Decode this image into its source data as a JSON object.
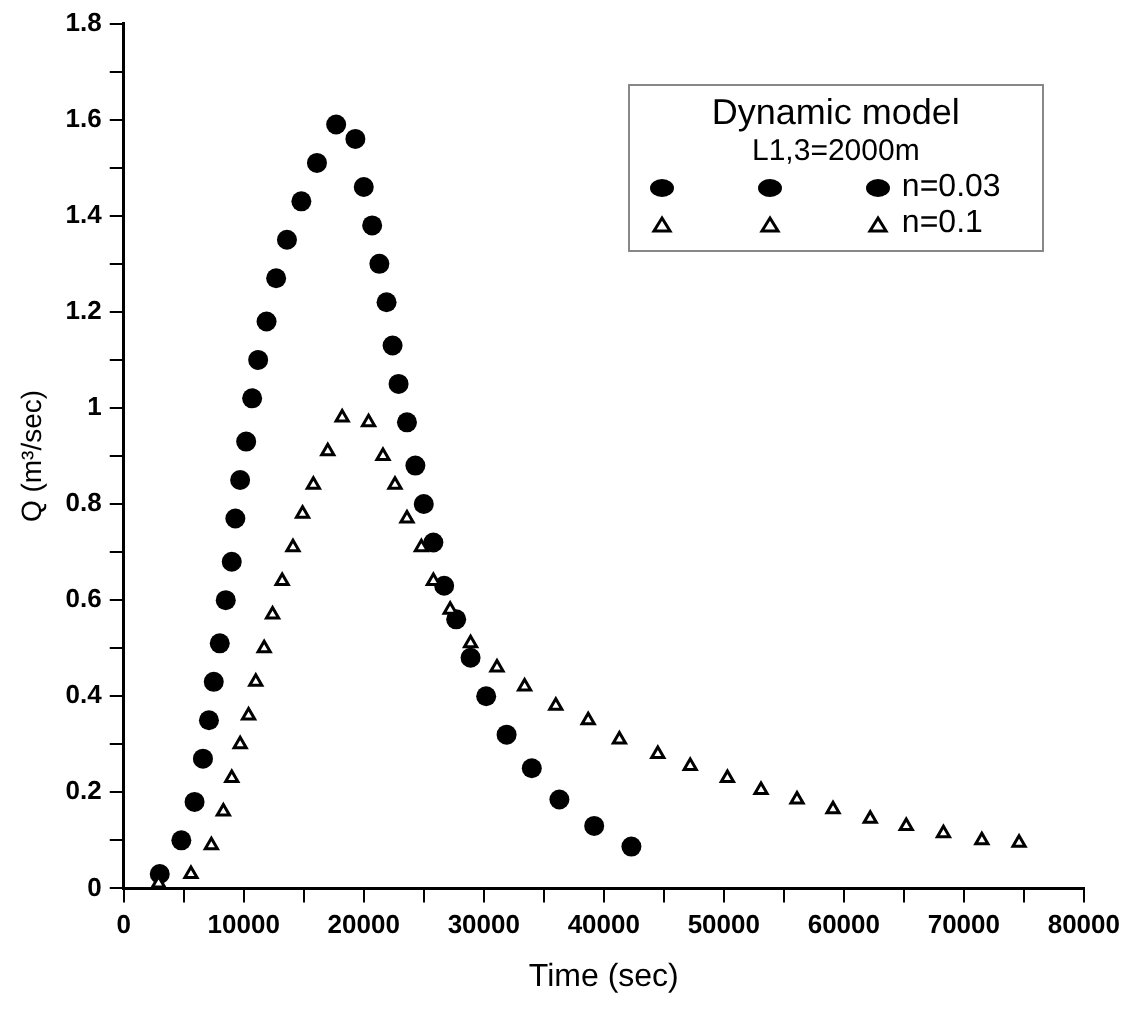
{
  "chart_data": {
    "type": "scatter",
    "xlabel": "Time (sec)",
    "ylabel": "Q (m³/sec)",
    "legend_title": "Dynamic model",
    "annotations": [
      "L1,3=2000m"
    ],
    "legend": "top right",
    "grid": false,
    "xlim": [
      0,
      80000
    ],
    "ylim": [
      0,
      1.8
    ],
    "xticks": [
      0,
      {
        "value": 5000,
        "label": null
      },
      10000,
      {
        "value": 15000,
        "label": null
      },
      20000,
      {
        "value": 25000,
        "label": null
      },
      30000,
      {
        "value": 35000,
        "label": null
      },
      40000,
      {
        "value": 45000,
        "label": null
      },
      50000,
      {
        "value": 55000,
        "label": null
      },
      60000,
      {
        "value": 65000,
        "label": null
      },
      70000,
      {
        "value": 75000,
        "label": null
      },
      80000
    ],
    "yticks": [
      0,
      {
        "value": 0.1,
        "label": null
      },
      0.2,
      {
        "value": 0.3,
        "label": null
      },
      0.4,
      {
        "value": 0.5,
        "label": null
      },
      0.6,
      {
        "value": 0.7,
        "label": null
      },
      0.8,
      {
        "value": 0.9,
        "label": null
      },
      1,
      {
        "value": 1.1,
        "label": null
      },
      1.2,
      {
        "value": 1.3,
        "label": null
      },
      1.4,
      {
        "value": 1.5,
        "label": null
      },
      1.6,
      {
        "value": 1.7,
        "label": null
      },
      1.8
    ],
    "series": [
      {
        "name": "n=0.03",
        "color": "#000000",
        "marker": "circle",
        "x": [
          3000,
          4800,
          5900,
          6600,
          7100,
          7500,
          8000,
          8500,
          9000,
          9300,
          9700,
          10200,
          10700,
          11200,
          11900,
          12700,
          13600,
          14800,
          16100,
          17700,
          19300,
          20000,
          20700,
          21300,
          21900,
          22400,
          22900,
          23600,
          24300,
          25000,
          25800,
          26700,
          27700,
          28900,
          30200,
          31900,
          34000,
          36300,
          39200,
          42300
        ],
        "values": [
          0.03,
          0.1,
          0.18,
          0.27,
          0.35,
          0.43,
          0.51,
          0.6,
          0.68,
          0.77,
          0.85,
          0.93,
          1.02,
          1.1,
          1.18,
          1.27,
          1.35,
          1.43,
          1.51,
          1.59,
          1.56,
          1.46,
          1.38,
          1.3,
          1.22,
          1.13,
          1.05,
          0.97,
          0.88,
          0.8,
          0.72,
          0.63,
          0.56,
          0.48,
          0.4,
          0.32,
          0.25,
          0.185,
          0.13,
          0.087
        ]
      },
      {
        "name": "n=0.1",
        "color": "#000000",
        "marker": "triangle",
        "x": [
          2900,
          5600,
          7300,
          8300,
          9000,
          9700,
          10400,
          11000,
          11700,
          12400,
          13200,
          14100,
          14900,
          15800,
          17000,
          18200,
          20400,
          21600,
          22600,
          23600,
          24800,
          25800,
          27200,
          28900,
          31100,
          33400,
          36000,
          38700,
          41300,
          44500,
          47200,
          50300,
          53100,
          56100,
          59100,
          62200,
          65200,
          68300,
          71500,
          74600
        ],
        "values": [
          0.01,
          0.03,
          0.09,
          0.16,
          0.23,
          0.3,
          0.36,
          0.43,
          0.5,
          0.57,
          0.64,
          0.71,
          0.78,
          0.84,
          0.91,
          0.98,
          0.97,
          0.9,
          0.84,
          0.77,
          0.71,
          0.64,
          0.58,
          0.51,
          0.46,
          0.42,
          0.38,
          0.35,
          0.31,
          0.28,
          0.255,
          0.23,
          0.205,
          0.185,
          0.165,
          0.145,
          0.13,
          0.115,
          0.1,
          0.095
        ]
      }
    ]
  }
}
